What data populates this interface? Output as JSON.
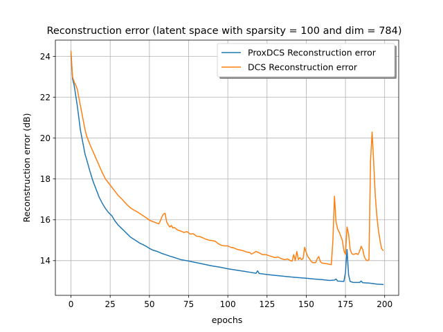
{
  "chart_data": {
    "type": "line",
    "title": "Reconstruction error (latent space with sparsity = 100 and dim = 784)",
    "xlabel": "epochs",
    "ylabel": "Reconstruction error (dB)",
    "xlim": [
      -9.95,
      208.95
    ],
    "ylim": [
      12.3,
      24.8
    ],
    "xticks": [
      0,
      25,
      50,
      75,
      100,
      125,
      150,
      175,
      200
    ],
    "yticks": [
      14,
      16,
      18,
      20,
      22,
      24
    ],
    "grid": true,
    "legend": "top-right",
    "series": [
      {
        "name": "ProxDCS Reconstruction error",
        "color": "#1f77b4",
        "points": [
          [
            0,
            24.1
          ],
          [
            1,
            22.9
          ],
          [
            2,
            22.6
          ],
          [
            3,
            22.1
          ],
          [
            4,
            21.6
          ],
          [
            5,
            21.0
          ],
          [
            6,
            20.4
          ],
          [
            7,
            20.0
          ],
          [
            8,
            19.6
          ],
          [
            9,
            19.2
          ],
          [
            10,
            18.95
          ],
          [
            12,
            18.4
          ],
          [
            14,
            17.9
          ],
          [
            16,
            17.5
          ],
          [
            18,
            17.1
          ],
          [
            20,
            16.8
          ],
          [
            22,
            16.55
          ],
          [
            24,
            16.35
          ],
          [
            26,
            16.2
          ],
          [
            28,
            15.95
          ],
          [
            30,
            15.75
          ],
          [
            32,
            15.6
          ],
          [
            34,
            15.45
          ],
          [
            36,
            15.3
          ],
          [
            38,
            15.15
          ],
          [
            40,
            15.05
          ],
          [
            42,
            14.95
          ],
          [
            44,
            14.85
          ],
          [
            46,
            14.78
          ],
          [
            48,
            14.7
          ],
          [
            50,
            14.6
          ],
          [
            52,
            14.52
          ],
          [
            55,
            14.45
          ],
          [
            58,
            14.35
          ],
          [
            60,
            14.3
          ],
          [
            63,
            14.22
          ],
          [
            66,
            14.15
          ],
          [
            70,
            14.05
          ],
          [
            75,
            13.98
          ],
          [
            80,
            13.9
          ],
          [
            85,
            13.82
          ],
          [
            90,
            13.74
          ],
          [
            95,
            13.68
          ],
          [
            100,
            13.6
          ],
          [
            105,
            13.54
          ],
          [
            110,
            13.48
          ],
          [
            115,
            13.42
          ],
          [
            118,
            13.38
          ],
          [
            119,
            13.5
          ],
          [
            120,
            13.37
          ],
          [
            125,
            13.32
          ],
          [
            130,
            13.28
          ],
          [
            135,
            13.24
          ],
          [
            140,
            13.2
          ],
          [
            145,
            13.17
          ],
          [
            150,
            13.14
          ],
          [
            155,
            13.1
          ],
          [
            160,
            13.07
          ],
          [
            165,
            13.03
          ],
          [
            168,
            13.05
          ],
          [
            169,
            13.1
          ],
          [
            170,
            13.0
          ],
          [
            174,
            12.98
          ],
          [
            175,
            13.4
          ],
          [
            176,
            14.55
          ],
          [
            177,
            13.3
          ],
          [
            178,
            12.98
          ],
          [
            180,
            12.93
          ],
          [
            184,
            12.93
          ],
          [
            185,
            13.0
          ],
          [
            186,
            12.92
          ],
          [
            190,
            12.9
          ],
          [
            195,
            12.85
          ],
          [
            199,
            12.83
          ]
        ]
      },
      {
        "name": "DCS Reconstruction error",
        "color": "#ff7f0e",
        "points": [
          [
            0,
            24.25
          ],
          [
            1,
            23.0
          ],
          [
            2,
            22.75
          ],
          [
            3,
            22.6
          ],
          [
            4,
            22.4
          ],
          [
            5,
            22.0
          ],
          [
            6,
            21.6
          ],
          [
            7,
            21.2
          ],
          [
            8,
            20.8
          ],
          [
            9,
            20.4
          ],
          [
            10,
            20.1
          ],
          [
            12,
            19.7
          ],
          [
            14,
            19.35
          ],
          [
            16,
            19.0
          ],
          [
            18,
            18.65
          ],
          [
            20,
            18.3
          ],
          [
            22,
            18.0
          ],
          [
            24,
            17.8
          ],
          [
            26,
            17.6
          ],
          [
            28,
            17.4
          ],
          [
            30,
            17.2
          ],
          [
            32,
            17.05
          ],
          [
            34,
            16.88
          ],
          [
            36,
            16.72
          ],
          [
            38,
            16.58
          ],
          [
            40,
            16.48
          ],
          [
            42,
            16.4
          ],
          [
            44,
            16.3
          ],
          [
            46,
            16.2
          ],
          [
            48,
            16.1
          ],
          [
            50,
            15.98
          ],
          [
            52,
            15.92
          ],
          [
            54,
            15.86
          ],
          [
            56,
            15.8
          ],
          [
            57,
            15.95
          ],
          [
            58,
            16.15
          ],
          [
            59,
            16.28
          ],
          [
            60,
            16.32
          ],
          [
            61,
            15.9
          ],
          [
            62,
            15.75
          ],
          [
            63,
            15.65
          ],
          [
            64,
            15.72
          ],
          [
            65,
            15.6
          ],
          [
            66,
            15.62
          ],
          [
            68,
            15.5
          ],
          [
            70,
            15.45
          ],
          [
            72,
            15.38
          ],
          [
            74,
            15.42
          ],
          [
            76,
            15.3
          ],
          [
            78,
            15.32
          ],
          [
            80,
            15.2
          ],
          [
            82,
            15.18
          ],
          [
            84,
            15.12
          ],
          [
            86,
            15.05
          ],
          [
            88,
            15.0
          ],
          [
            90,
            14.98
          ],
          [
            92,
            14.95
          ],
          [
            94,
            14.82
          ],
          [
            96,
            14.75
          ],
          [
            98,
            14.72
          ],
          [
            100,
            14.72
          ],
          [
            102,
            14.65
          ],
          [
            104,
            14.62
          ],
          [
            106,
            14.55
          ],
          [
            108,
            14.52
          ],
          [
            110,
            14.48
          ],
          [
            112,
            14.42
          ],
          [
            114,
            14.4
          ],
          [
            115,
            14.32
          ],
          [
            117,
            14.4
          ],
          [
            118,
            14.45
          ],
          [
            120,
            14.38
          ],
          [
            122,
            14.3
          ],
          [
            124,
            14.3
          ],
          [
            126,
            14.25
          ],
          [
            128,
            14.2
          ],
          [
            130,
            14.15
          ],
          [
            132,
            14.18
          ],
          [
            134,
            14.1
          ],
          [
            136,
            14.05
          ],
          [
            138,
            14.08
          ],
          [
            140,
            14.0
          ],
          [
            141,
            13.98
          ],
          [
            142,
            14.3
          ],
          [
            143,
            14.0
          ],
          [
            144,
            14.45
          ],
          [
            145,
            14.05
          ],
          [
            146,
            14.15
          ],
          [
            147,
            14.05
          ],
          [
            148,
            14.1
          ],
          [
            149,
            14.65
          ],
          [
            150,
            14.4
          ],
          [
            151,
            14.2
          ],
          [
            152,
            14.1
          ],
          [
            153,
            13.98
          ],
          [
            154,
            13.9
          ],
          [
            156,
            13.9
          ],
          [
            157,
            14.1
          ],
          [
            158,
            14.2
          ],
          [
            159,
            13.95
          ],
          [
            160,
            13.88
          ],
          [
            163,
            13.85
          ],
          [
            165,
            13.82
          ],
          [
            166,
            13.8
          ],
          [
            167,
            15.0
          ],
          [
            168,
            17.15
          ],
          [
            169,
            15.9
          ],
          [
            170,
            15.55
          ],
          [
            171,
            15.4
          ],
          [
            172,
            15.2
          ],
          [
            173,
            15.0
          ],
          [
            174,
            14.5
          ],
          [
            175,
            14.3
          ],
          [
            176,
            15.65
          ],
          [
            177,
            15.3
          ],
          [
            178,
            14.55
          ],
          [
            179,
            14.35
          ],
          [
            180,
            14.3
          ],
          [
            182,
            14.35
          ],
          [
            183,
            14.3
          ],
          [
            184,
            14.45
          ],
          [
            185,
            14.7
          ],
          [
            186,
            14.55
          ],
          [
            187,
            14.2
          ],
          [
            188,
            14.05
          ],
          [
            189,
            14.0
          ],
          [
            190,
            14.05
          ],
          [
            191,
            18.9
          ],
          [
            192,
            20.3
          ],
          [
            193,
            18.8
          ],
          [
            194,
            17.2
          ],
          [
            195,
            16.2
          ],
          [
            196,
            15.5
          ],
          [
            197,
            15.0
          ],
          [
            198,
            14.6
          ],
          [
            199,
            14.5
          ]
        ]
      }
    ]
  }
}
